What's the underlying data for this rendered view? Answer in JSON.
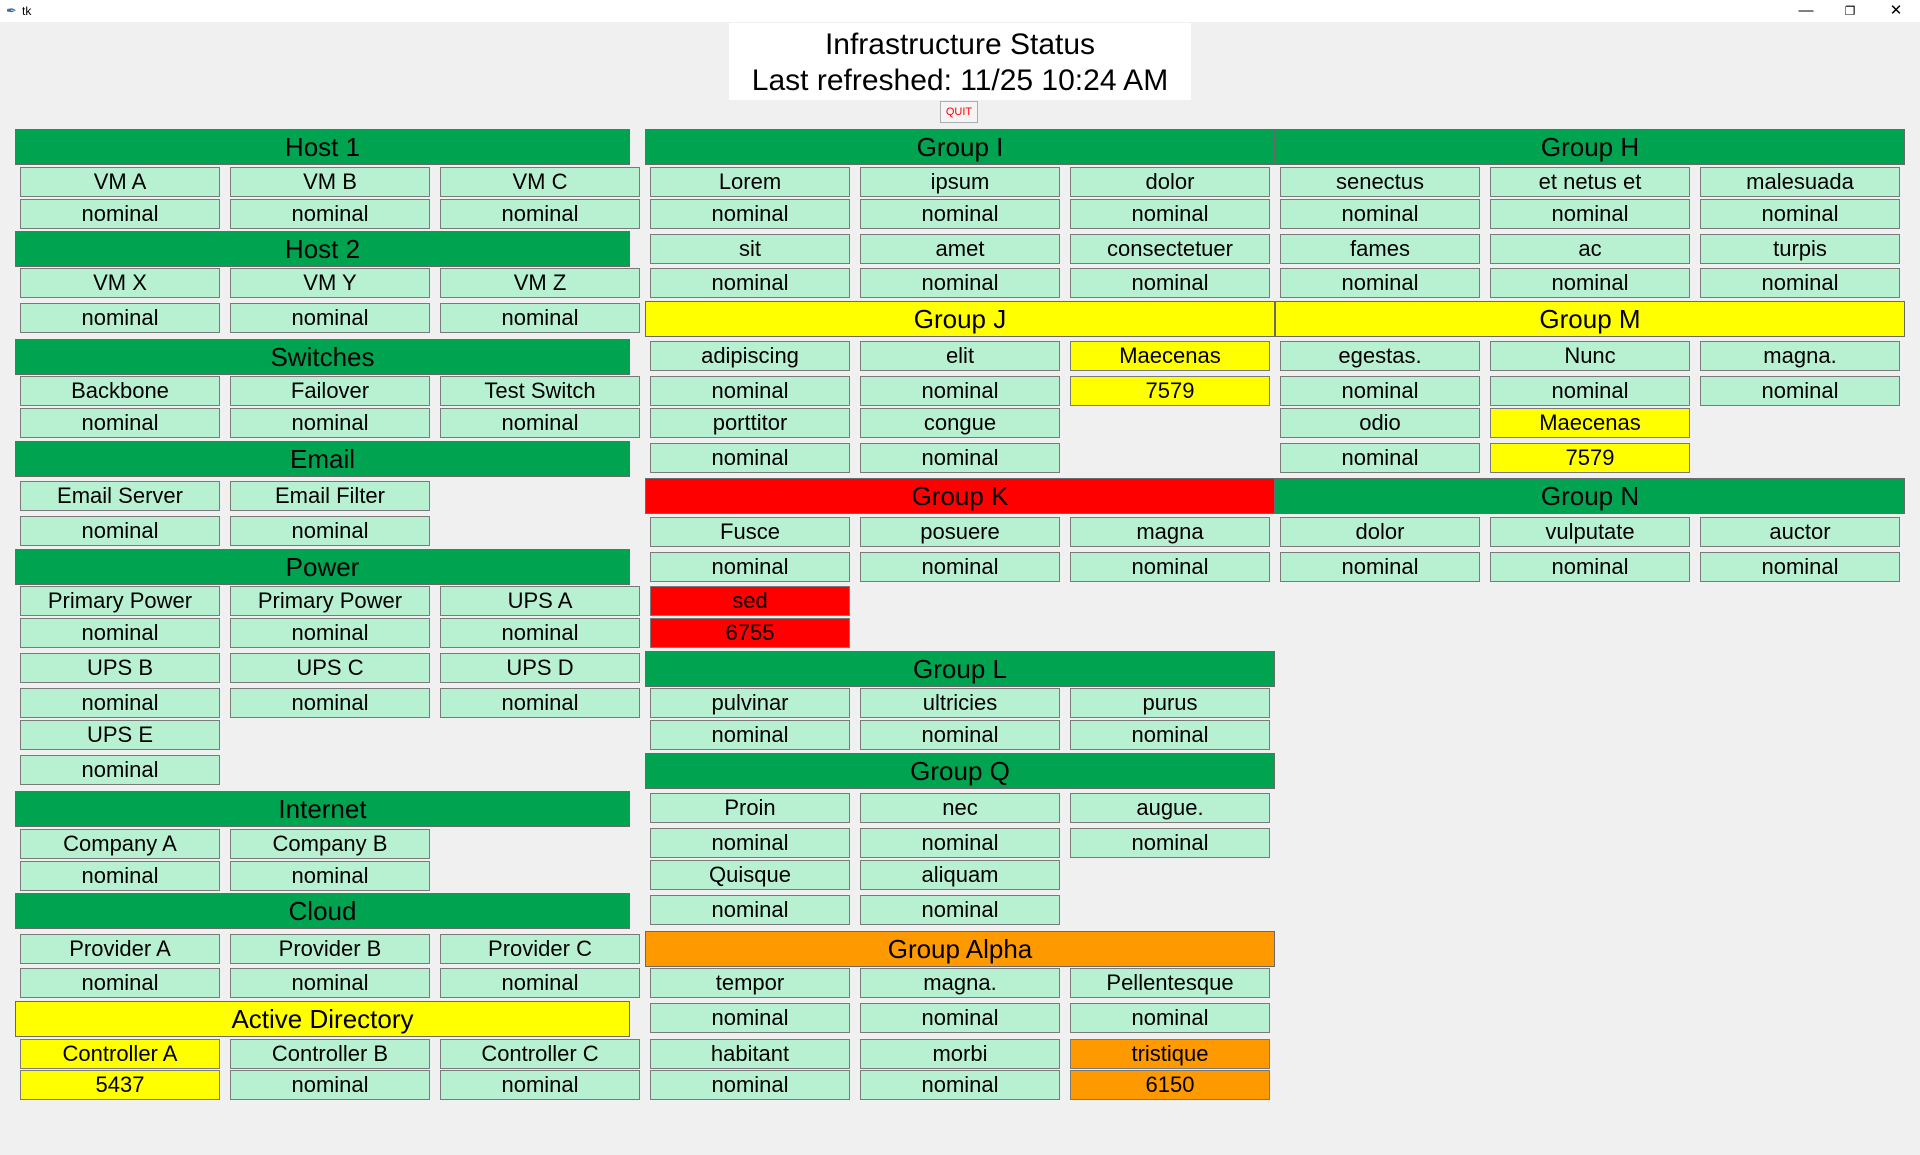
{
  "window": {
    "title": "tk",
    "minimize": "—",
    "restore": "❐",
    "close": "✕"
  },
  "header": {
    "title": "Infrastructure Status",
    "refreshed": "Last refreshed: 11/25 10:24 AM"
  },
  "quit_label": "QUIT",
  "colors": {
    "green": "#00a450",
    "light": "#b8f0d2",
    "yellow": "#ffff00",
    "red": "#ff0000",
    "orange": "#ff9900"
  },
  "groups": {
    "host1": {
      "title": "Host 1",
      "items": [
        {
          "name": "VM A",
          "status": "nominal"
        },
        {
          "name": "VM B",
          "status": "nominal"
        },
        {
          "name": "VM C",
          "status": "nominal"
        }
      ]
    },
    "host2": {
      "title": "Host 2",
      "items": [
        {
          "name": "VM X",
          "status": "nominal"
        },
        {
          "name": "VM Y",
          "status": "nominal"
        },
        {
          "name": "VM Z",
          "status": "nominal"
        }
      ]
    },
    "switches": {
      "title": "Switches",
      "items": [
        {
          "name": "Backbone",
          "status": "nominal"
        },
        {
          "name": "Failover",
          "status": "nominal"
        },
        {
          "name": "Test Switch",
          "status": "nominal"
        }
      ]
    },
    "email": {
      "title": "Email",
      "items": [
        {
          "name": "Email Server",
          "status": "nominal"
        },
        {
          "name": "Email Filter",
          "status": "nominal"
        }
      ]
    },
    "power": {
      "title": "Power",
      "items": [
        {
          "name": "Primary Power",
          "status": "nominal"
        },
        {
          "name": "Primary Power",
          "status": "nominal"
        },
        {
          "name": "UPS A",
          "status": "nominal"
        },
        {
          "name": "UPS B",
          "status": "nominal"
        },
        {
          "name": "UPS C",
          "status": "nominal"
        },
        {
          "name": "UPS D",
          "status": "nominal"
        },
        {
          "name": "UPS E",
          "status": "nominal"
        }
      ]
    },
    "internet": {
      "title": "Internet",
      "items": [
        {
          "name": "Company A",
          "status": "nominal"
        },
        {
          "name": "Company B",
          "status": "nominal"
        }
      ]
    },
    "cloud": {
      "title": "Cloud",
      "items": [
        {
          "name": "Provider A",
          "status": "nominal"
        },
        {
          "name": "Provider B",
          "status": "nominal"
        },
        {
          "name": "Provider C",
          "status": "nominal"
        }
      ]
    },
    "ad": {
      "title": "Active Directory",
      "items": [
        {
          "name": "Controller A",
          "status": "5437"
        },
        {
          "name": "Controller B",
          "status": "nominal"
        },
        {
          "name": "Controller C",
          "status": "nominal"
        }
      ]
    },
    "groupI": {
      "title": "Group I",
      "items": [
        {
          "name": "Lorem",
          "status": "nominal"
        },
        {
          "name": "ipsum",
          "status": "nominal"
        },
        {
          "name": "dolor",
          "status": "nominal"
        },
        {
          "name": "sit",
          "status": "nominal"
        },
        {
          "name": "amet",
          "status": "nominal"
        },
        {
          "name": "consectetuer",
          "status": "nominal"
        }
      ]
    },
    "groupJ": {
      "title": "Group J",
      "items": [
        {
          "name": "adipiscing",
          "status": "nominal"
        },
        {
          "name": "elit",
          "status": "nominal"
        },
        {
          "name": "Maecenas",
          "status": "7579"
        },
        {
          "name": "porttitor",
          "status": "nominal"
        },
        {
          "name": "congue",
          "status": "nominal"
        }
      ]
    },
    "groupK": {
      "title": "Group K",
      "items": [
        {
          "name": "Fusce",
          "status": "nominal"
        },
        {
          "name": "posuere",
          "status": "nominal"
        },
        {
          "name": "magna",
          "status": "nominal"
        },
        {
          "name": "sed",
          "status": "6755"
        }
      ]
    },
    "groupL": {
      "title": "Group L",
      "items": [
        {
          "name": "pulvinar",
          "status": "nominal"
        },
        {
          "name": "ultricies",
          "status": "nominal"
        },
        {
          "name": "purus",
          "status": "nominal"
        }
      ]
    },
    "groupQ": {
      "title": "Group Q",
      "items": [
        {
          "name": "Proin",
          "status": "nominal"
        },
        {
          "name": "nec",
          "status": "nominal"
        },
        {
          "name": "augue.",
          "status": "nominal"
        },
        {
          "name": "Quisque",
          "status": "nominal"
        },
        {
          "name": "aliquam",
          "status": "nominal"
        }
      ]
    },
    "groupAlpha": {
      "title": "Group Alpha",
      "items": [
        {
          "name": "tempor",
          "status": "nominal"
        },
        {
          "name": "magna.",
          "status": "nominal"
        },
        {
          "name": "Pellentesque",
          "status": "nominal"
        },
        {
          "name": "habitant",
          "status": "nominal"
        },
        {
          "name": "morbi",
          "status": "nominal"
        },
        {
          "name": "tristique",
          "status": "6150"
        }
      ]
    },
    "groupH": {
      "title": "Group H",
      "items": [
        {
          "name": "senectus",
          "status": "nominal"
        },
        {
          "name": "et netus et",
          "status": "nominal"
        },
        {
          "name": "malesuada",
          "status": "nominal"
        },
        {
          "name": "fames",
          "status": "nominal"
        },
        {
          "name": "ac",
          "status": "nominal"
        },
        {
          "name": "turpis",
          "status": "nominal"
        }
      ]
    },
    "groupM": {
      "title": "Group M",
      "items": [
        {
          "name": "egestas.",
          "status": "nominal"
        },
        {
          "name": "Nunc",
          "status": "nominal"
        },
        {
          "name": "magna.",
          "status": "nominal"
        },
        {
          "name": "odio",
          "status": "nominal"
        },
        {
          "name": "Maecenas",
          "status": "7579"
        }
      ]
    },
    "groupN": {
      "title": "Group N",
      "items": [
        {
          "name": "dolor",
          "status": "nominal"
        },
        {
          "name": "vulputate",
          "status": "nominal"
        },
        {
          "name": "auctor",
          "status": "nominal"
        }
      ]
    }
  }
}
